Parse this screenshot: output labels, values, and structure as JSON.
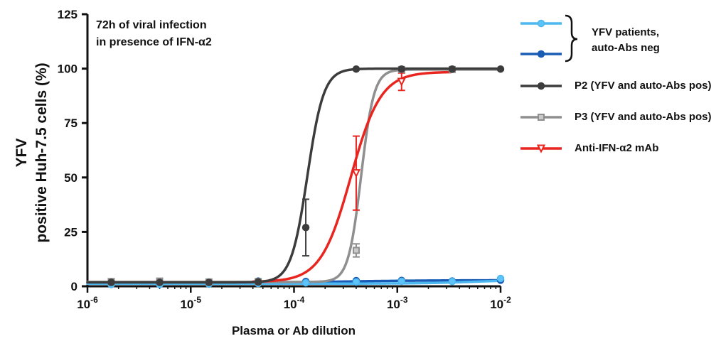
{
  "chart_data": {
    "type": "line",
    "x_scale": "log",
    "annotation": [
      "72h of viral infection",
      "in presence of IFN-α2"
    ],
    "ylabel_lines": [
      "YFV",
      "positive Huh-7.5 cells (%)"
    ],
    "xlabel": "Plasma or Ab dilution",
    "xlim": [
      1e-06,
      0.01
    ],
    "ylim": [
      0,
      125
    ],
    "y_ticks": [
      0,
      25,
      50,
      75,
      100,
      125
    ],
    "x_ticks": [
      {
        "value": 1e-06,
        "base": "10",
        "exp": "-6"
      },
      {
        "value": 1e-05,
        "base": "10",
        "exp": "-5"
      },
      {
        "value": 0.0001,
        "base": "10",
        "exp": "-4"
      },
      {
        "value": 0.001,
        "base": "10",
        "exp": "-3"
      },
      {
        "value": 0.01,
        "base": "10",
        "exp": "-2"
      }
    ],
    "legend_brace_label": [
      "YFV patients,",
      "auto-Abs neg"
    ],
    "series": [
      {
        "key": "yfv_neg_1",
        "color": "#4db8f0",
        "marker": "circle",
        "fit": {
          "bottom": 1.2,
          "top": 3.2,
          "logEC50": -2.2,
          "hill": 1.5
        },
        "points": [
          {
            "x": 1.7e-06,
            "y": 0.8
          },
          {
            "x": 5e-06,
            "y": 0.8
          },
          {
            "x": 1.5e-05,
            "y": 1.0
          },
          {
            "x": 4.5e-05,
            "y": 1.3
          },
          {
            "x": 0.00013,
            "y": 1.6
          },
          {
            "x": 0.0004,
            "y": 2.0
          },
          {
            "x": 0.0011,
            "y": 2.3
          },
          {
            "x": 0.0034,
            "y": 2.2
          },
          {
            "x": 0.01,
            "y": 3.6
          }
        ]
      },
      {
        "key": "yfv_neg_2",
        "color": "#1a5bb5",
        "marker": "circle",
        "fit": {
          "bottom": 1.6,
          "top": 2.8,
          "logEC50": -3.5,
          "hill": 1.0
        },
        "points": [
          {
            "x": 1.7e-06,
            "y": 1.6
          },
          {
            "x": 5e-06,
            "y": 1.8
          },
          {
            "x": 1.5e-05,
            "y": 1.8
          },
          {
            "x": 4.5e-05,
            "y": 2.4
          },
          {
            "x": 0.00013,
            "y": 2.2
          },
          {
            "x": 0.0004,
            "y": 2.6
          },
          {
            "x": 0.0011,
            "y": 2.7
          },
          {
            "x": 0.0034,
            "y": 2.4
          },
          {
            "x": 0.01,
            "y": 2.8
          }
        ]
      },
      {
        "key": "p2",
        "name": "P2 (YFV and auto-Abs pos)",
        "color": "#3c3c3c",
        "marker": "circle",
        "fit": {
          "bottom": 1.8,
          "top": 100,
          "logEC50": -3.87,
          "hill": 5.5
        },
        "points": [
          {
            "x": 1.7e-06,
            "y": 1.8
          },
          {
            "x": 5e-06,
            "y": 1.8
          },
          {
            "x": 1.5e-05,
            "y": 1.8
          },
          {
            "x": 4.5e-05,
            "y": 2.0
          },
          {
            "x": 0.00013,
            "y": 27,
            "err": 13
          },
          {
            "x": 0.0004,
            "y": 99.8
          },
          {
            "x": 0.0011,
            "y": 99.8
          },
          {
            "x": 0.0034,
            "y": 99.8
          },
          {
            "x": 0.01,
            "y": 99.8
          }
        ]
      },
      {
        "key": "p3",
        "name": "P3 (YFV and auto-Abs pos)",
        "color": "#8f8f8f",
        "marker": "square",
        "fit": {
          "bottom": 2.0,
          "top": 99.6,
          "logEC50": -3.35,
          "hill": 7.0
        },
        "points": [
          {
            "x": 1.7e-06,
            "y": 2.2
          },
          {
            "x": 5e-06,
            "y": 2.4
          },
          {
            "x": 1.5e-05,
            "y": 2.0
          },
          {
            "x": 4.5e-05,
            "y": 2.2
          },
          {
            "x": 0.0004,
            "y": 16.5,
            "err": 3
          },
          {
            "x": 0.0011,
            "y": 99.6
          },
          {
            "x": 0.0034,
            "y": 99.6
          }
        ]
      },
      {
        "key": "mab",
        "name": "Anti-IFN-α2 mAb",
        "color": "#e8251f",
        "marker": "triangle-down",
        "fit": {
          "bottom": 2.0,
          "top": 98.5,
          "logEC50": -3.45,
          "hill": 3.0,
          "xmin": 4e-05,
          "xmax": 0.0033
        },
        "points": [
          {
            "x": 0.0004,
            "y": 52,
            "err": 17
          },
          {
            "x": 0.0011,
            "y": 94,
            "err": 4
          }
        ]
      }
    ],
    "legend_order": [
      "yfv_neg_1",
      "yfv_neg_2",
      "p2",
      "p3",
      "mab"
    ]
  }
}
